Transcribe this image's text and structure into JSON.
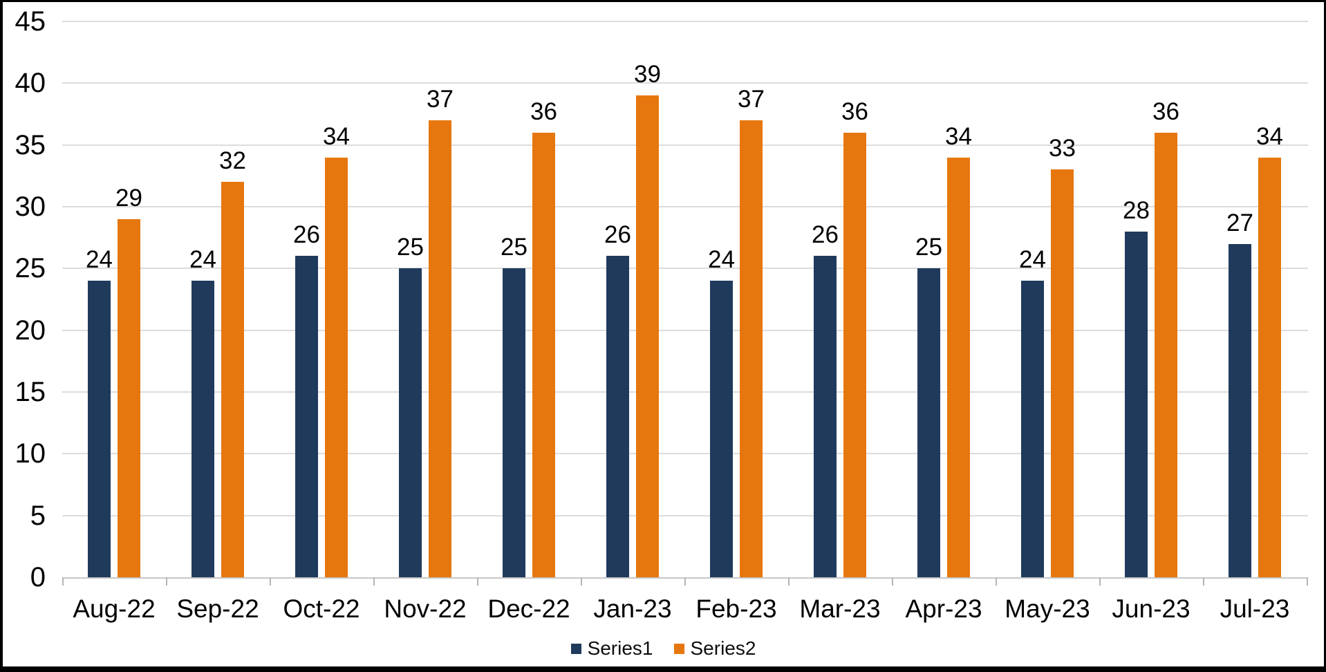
{
  "chart_data": {
    "type": "bar",
    "title": "",
    "xlabel": "",
    "ylabel": "",
    "categories": [
      "Aug-22",
      "Sep-22",
      "Oct-22",
      "Nov-22",
      "Dec-22",
      "Jan-23",
      "Feb-23",
      "Mar-23",
      "Apr-23",
      "May-23",
      "Jun-23",
      "Jul-23"
    ],
    "series": [
      {
        "name": "Series1",
        "color": "#203A5C",
        "values": [
          24,
          24,
          26,
          25,
          25,
          26,
          24,
          26,
          25,
          24,
          28,
          27
        ]
      },
      {
        "name": "Series2",
        "color": "#E6770E",
        "values": [
          29,
          32,
          34,
          37,
          36,
          39,
          37,
          36,
          34,
          33,
          36,
          34
        ]
      }
    ],
    "ylim": [
      0,
      45
    ],
    "ytick_step": 5,
    "ytick_labels": [
      "0",
      "5",
      "10",
      "15",
      "20",
      "25",
      "30",
      "35",
      "40",
      "45"
    ],
    "value_labels_shown": true,
    "grid": true,
    "legend_position": "bottom"
  },
  "colors": {
    "background": "#FFFFFF",
    "frame_border": "#000000",
    "gridline": "#DCDCDC",
    "axis_line": "#C6C6C6",
    "tick": "#B5B5B5",
    "text": "#000000"
  }
}
